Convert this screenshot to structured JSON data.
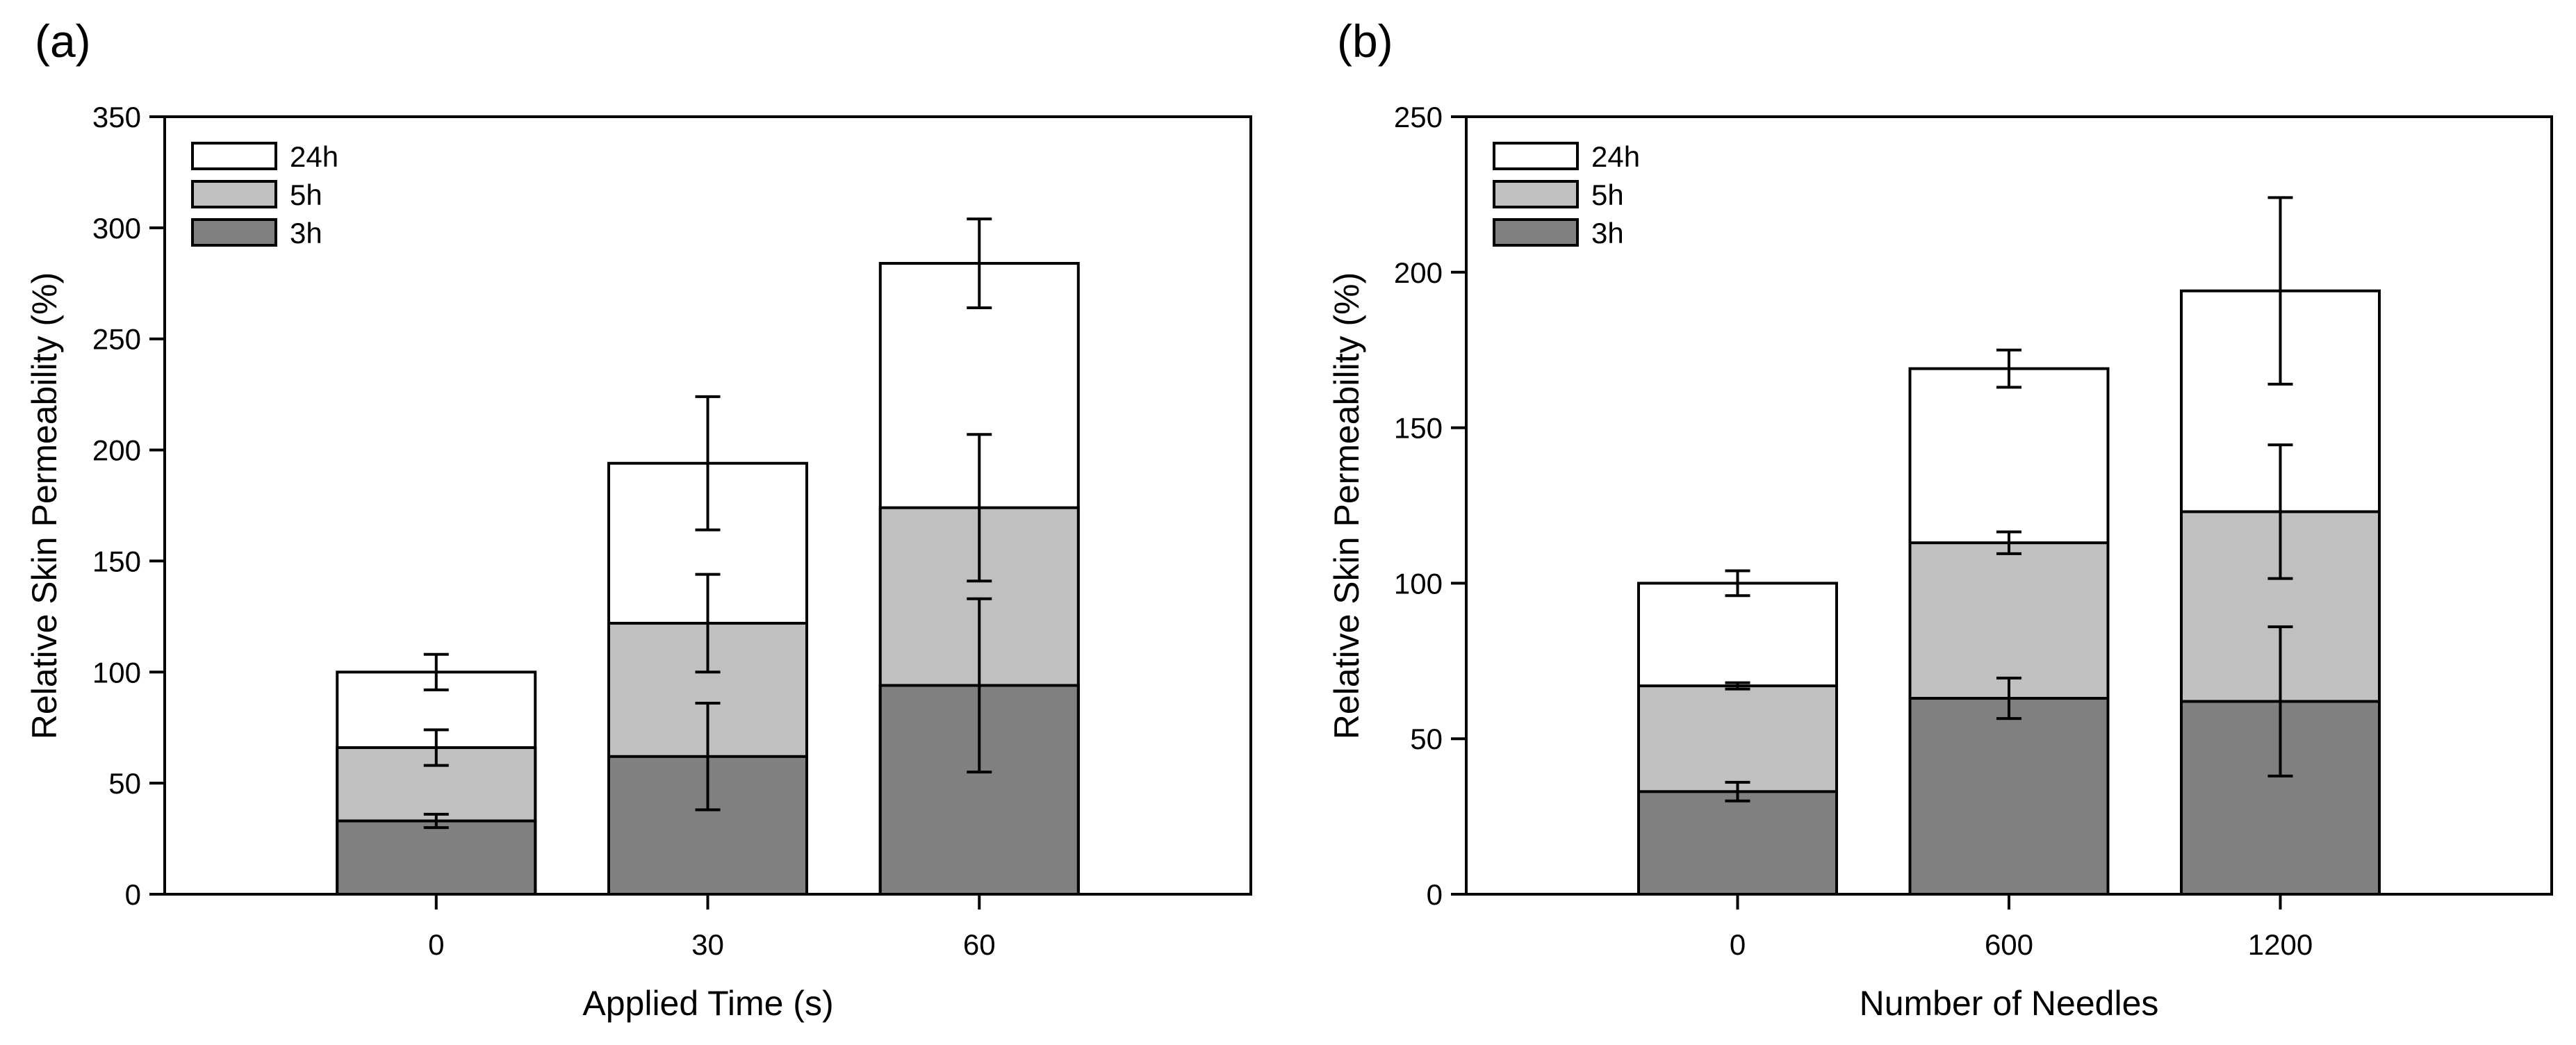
{
  "chart_data": [
    {
      "type": "bar",
      "panel_label": "(a)",
      "xlabel": "Applied Time (s)",
      "ylabel": "Relative Skin Permeability (%)",
      "categories": [
        "0",
        "30",
        "60"
      ],
      "ylim": [
        0,
        350
      ],
      "yticks": [
        0,
        50,
        100,
        150,
        200,
        250,
        300,
        350
      ],
      "legend_position": "top-left",
      "series": [
        {
          "name": "3h",
          "values": [
            33,
            62,
            94
          ],
          "errors": [
            3,
            24,
            39
          ],
          "color": "#808080"
        },
        {
          "name": "5h",
          "values": [
            66,
            122,
            174
          ],
          "errors": [
            8,
            22,
            33
          ],
          "color": "#c0c0c0"
        },
        {
          "name": "24h",
          "values": [
            100,
            194,
            284
          ],
          "errors": [
            8,
            30,
            20
          ],
          "color": "#ffffff"
        }
      ]
    },
    {
      "type": "bar",
      "panel_label": "(b)",
      "xlabel": "Number of Needles",
      "ylabel": "Relative Skin Permeability (%)",
      "categories": [
        "0",
        "600",
        "1200"
      ],
      "ylim": [
        0,
        250
      ],
      "yticks": [
        0,
        50,
        100,
        150,
        200,
        250
      ],
      "legend_position": "top-left",
      "series": [
        {
          "name": "3h",
          "values": [
            33,
            63,
            62
          ],
          "errors": [
            3,
            6.5,
            24
          ],
          "color": "#808080"
        },
        {
          "name": "5h",
          "values": [
            67,
            113,
            123
          ],
          "errors": [
            1,
            3.5,
            21.5
          ],
          "color": "#c0c0c0"
        },
        {
          "name": "24h",
          "values": [
            100,
            169,
            194
          ],
          "errors": [
            4,
            6,
            30
          ],
          "color": "#ffffff"
        }
      ]
    }
  ]
}
